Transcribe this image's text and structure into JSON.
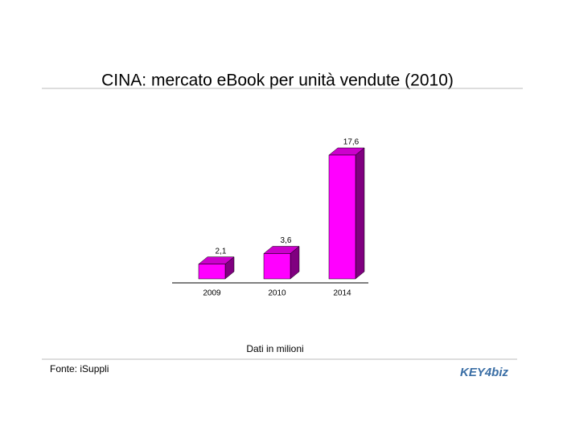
{
  "chart_data": {
    "type": "bar3d",
    "title": "CINA: mercato eBook per unità vendute (2010)",
    "categories": [
      "2009",
      "2010",
      "2014"
    ],
    "values": [
      2.1,
      3.6,
      17.6
    ],
    "value_labels": [
      "2,1",
      "3,6",
      "17,6"
    ],
    "colors": {
      "front": "#ff00ff",
      "top": "#cc00cc",
      "side": "#800080"
    },
    "note": "Dati in milioni",
    "source": "Fonte: iSuppli",
    "logo": "KEY4biz"
  }
}
